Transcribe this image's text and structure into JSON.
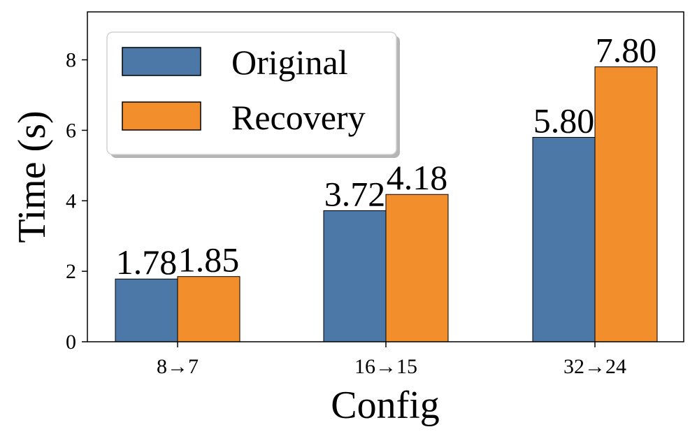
{
  "chart_data": {
    "type": "bar",
    "title": "",
    "xlabel": "Config",
    "ylabel": "Time (s)",
    "categories": [
      "8→7",
      "16→15",
      "32→24"
    ],
    "series": [
      {
        "name": "Original",
        "values": [
          1.78,
          3.72,
          5.8
        ],
        "labels": [
          "1.78",
          "3.72",
          "5.80"
        ],
        "color": "#4c78a8"
      },
      {
        "name": "Recovery",
        "values": [
          1.85,
          4.18,
          7.8
        ],
        "labels": [
          "1.85",
          "4.18",
          "7.80"
        ],
        "color": "#f28e2b"
      }
    ],
    "ylim": [
      0,
      9.36
    ],
    "yticks": [
      0,
      2,
      4,
      6,
      8
    ],
    "ytick_labels": [
      "0",
      "2",
      "4",
      "6",
      "8"
    ],
    "grid": false,
    "legend_position": "top-left"
  }
}
